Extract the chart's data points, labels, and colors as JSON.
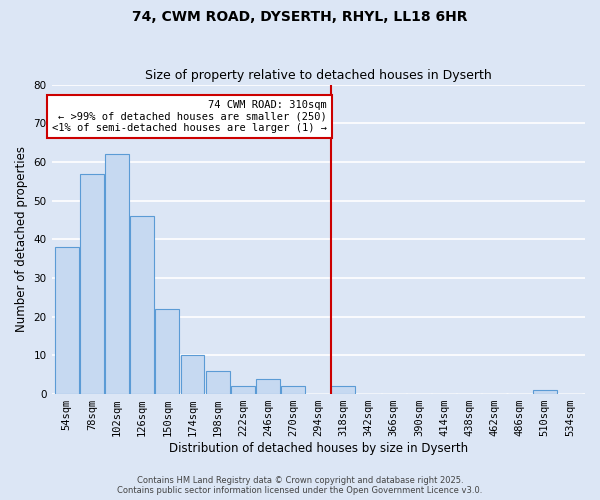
{
  "title": "74, CWM ROAD, DYSERTH, RHYL, LL18 6HR",
  "subtitle": "Size of property relative to detached houses in Dyserth",
  "xlabel": "Distribution of detached houses by size in Dyserth",
  "ylabel": "Number of detached properties",
  "bin_labels": [
    "54sqm",
    "78sqm",
    "102sqm",
    "126sqm",
    "150sqm",
    "174sqm",
    "198sqm",
    "222sqm",
    "246sqm",
    "270sqm",
    "294sqm",
    "318sqm",
    "342sqm",
    "366sqm",
    "390sqm",
    "414sqm",
    "438sqm",
    "462sqm",
    "486sqm",
    "510sqm",
    "534sqm"
  ],
  "bar_values": [
    38,
    57,
    62,
    46,
    22,
    10,
    6,
    2,
    4,
    2,
    0,
    2,
    0,
    0,
    0,
    0,
    0,
    0,
    0,
    1,
    0
  ],
  "bar_color": "#c6d9f1",
  "bar_edge_color": "#5b9bd5",
  "highlight_line_index": 11,
  "ylim": [
    0,
    80
  ],
  "yticks": [
    0,
    10,
    20,
    30,
    40,
    50,
    60,
    70,
    80
  ],
  "annotation_title": "74 CWM ROAD: 310sqm",
  "annotation_line1": "← >99% of detached houses are smaller (250)",
  "annotation_line2": "<1% of semi-detached houses are larger (1) →",
  "annotation_box_color": "#ffffff",
  "annotation_box_edge": "#cc0000",
  "footer_line1": "Contains HM Land Registry data © Crown copyright and database right 2025.",
  "footer_line2": "Contains public sector information licensed under the Open Government Licence v3.0.",
  "background_color": "#dce6f5",
  "grid_color": "#ffffff",
  "title_fontsize": 10,
  "subtitle_fontsize": 9,
  "axis_label_fontsize": 8.5,
  "tick_fontsize": 7.5,
  "annotation_fontsize": 7.5,
  "footer_fontsize": 6
}
